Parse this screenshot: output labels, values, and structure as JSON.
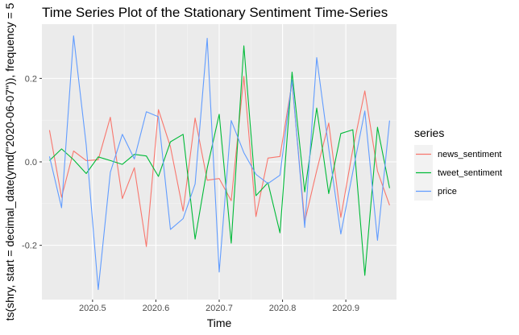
{
  "chart_data": {
    "type": "line",
    "title": "Time Series Plot of the Stationary Sentiment Time-Series",
    "xlabel": "Time",
    "ylabel": "ts(shry, start = decimal_date(ymd(\"2020-06-07\")), frequency = 5",
    "xlim": [
      2020.42,
      2020.98
    ],
    "ylim": [
      -0.33,
      0.33
    ],
    "x_ticks": [
      2020.5,
      2020.6,
      2020.7,
      2020.8,
      2020.9
    ],
    "x_tick_labels": [
      "2020.5",
      "2020.6",
      "2020.7",
      "2020.8",
      "2020.9"
    ],
    "y_ticks": [
      -0.2,
      0.0,
      0.2
    ],
    "y_tick_labels": [
      "-0.2",
      "0.0",
      "0.2"
    ],
    "grid": true,
    "legend": {
      "title": "series",
      "position": "right"
    },
    "x": [
      2020.432,
      2020.451,
      2020.47,
      2020.49,
      2020.509,
      2020.528,
      2020.547,
      2020.566,
      2020.585,
      2020.604,
      2020.623,
      2020.643,
      2020.662,
      2020.681,
      2020.7,
      2020.719,
      2020.739,
      2020.758,
      2020.777,
      2020.796,
      2020.815,
      2020.835,
      2020.854,
      2020.873,
      2020.892,
      2020.911,
      2020.93,
      2020.95,
      2020.969
    ],
    "series": [
      {
        "name": "news_sentiment",
        "color": "#F8766D",
        "values": [
          0.076,
          -0.085,
          0.026,
          0.003,
          0.005,
          0.107,
          -0.088,
          -0.014,
          -0.203,
          0.125,
          0.036,
          -0.118,
          0.105,
          -0.044,
          -0.04,
          -0.093,
          0.205,
          -0.131,
          0.009,
          0.013,
          0.19,
          -0.143,
          -0.021,
          0.093,
          -0.133,
          0.03,
          0.17,
          -0.022,
          -0.104
        ]
      },
      {
        "name": "tweet_sentiment",
        "color": "#00BA38",
        "values": [
          0.003,
          0.031,
          0.005,
          -0.028,
          0.012,
          0.003,
          -0.006,
          0.018,
          0.014,
          -0.035,
          0.048,
          0.066,
          -0.185,
          -0.015,
          0.114,
          -0.195,
          0.278,
          -0.081,
          -0.05,
          -0.17,
          0.215,
          -0.072,
          0.129,
          -0.076,
          0.068,
          0.077,
          -0.272,
          0.083,
          -0.063
        ]
      },
      {
        "name": "price",
        "color": "#619CFF",
        "values": [
          0.013,
          -0.11,
          0.302,
          0.04,
          -0.306,
          -0.025,
          0.066,
          0.007,
          0.12,
          0.108,
          -0.162,
          -0.136,
          -0.053,
          0.296,
          -0.264,
          0.099,
          0.022,
          -0.03,
          -0.052,
          -0.032,
          0.196,
          -0.157,
          0.25,
          0.032,
          -0.173,
          -0.024,
          0.122,
          -0.188,
          0.099
        ]
      }
    ]
  }
}
